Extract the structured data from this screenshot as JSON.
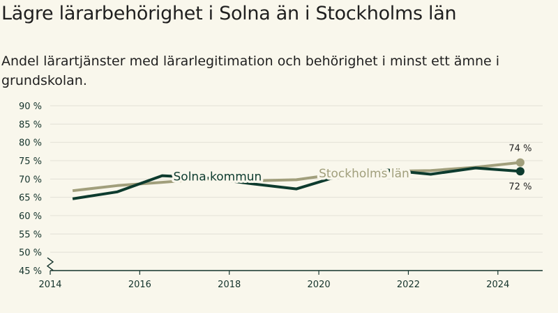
{
  "title": "Lägre lärarbehörighet i Solna än i Stockholms län",
  "subtitle": "Andel lärartjänster med lärarlegitimation och behörighet i minst ett ämne i grundskolan.",
  "chart_data": {
    "type": "line",
    "ylim": [
      45,
      90
    ],
    "y_ticks": [
      {
        "value": 45,
        "label": "45 %"
      },
      {
        "value": 50,
        "label": "50 %"
      },
      {
        "value": 55,
        "label": "55 %"
      },
      {
        "value": 60,
        "label": "60 %"
      },
      {
        "value": 65,
        "label": "65 %"
      },
      {
        "value": 70,
        "label": "70 %"
      },
      {
        "value": 75,
        "label": "75 %"
      },
      {
        "value": 80,
        "label": "80 %"
      },
      {
        "value": 85,
        "label": "85 %"
      },
      {
        "value": 90,
        "label": "90 %"
      }
    ],
    "xlim": [
      2014,
      2025
    ],
    "x_ticks": [
      {
        "value": 2014,
        "label": "2014"
      },
      {
        "value": 2016,
        "label": "2016"
      },
      {
        "value": 2018,
        "label": "2018"
      },
      {
        "value": 2020,
        "label": "2020"
      },
      {
        "value": 2022,
        "label": "2022"
      },
      {
        "value": 2024,
        "label": "2024"
      }
    ],
    "y_axis_break": true,
    "grid": true,
    "series": [
      {
        "name": "Stockholms län",
        "color": "#a19f7c",
        "x": [
          2014.5,
          2015.5,
          2016.5,
          2017.5,
          2018.5,
          2019.5,
          2020.5,
          2021.5,
          2022.5,
          2023.5,
          2024.5
        ],
        "values": [
          66.8,
          68.2,
          69.1,
          70.0,
          69.5,
          69.8,
          71.5,
          72.1,
          72.3,
          73.2,
          74.5
        ],
        "end_label": "74 %"
      },
      {
        "name": "Solna kommun",
        "color": "#0d3b2e",
        "x": [
          2014.5,
          2015.5,
          2016.5,
          2017.5,
          2018.5,
          2019.5,
          2020.5,
          2021.5,
          2022.5,
          2023.5,
          2024.5
        ],
        "values": [
          64.6,
          66.5,
          70.9,
          70.3,
          68.7,
          67.3,
          71.0,
          72.5,
          71.3,
          73.0,
          72.1
        ],
        "end_label": "72 %"
      }
    ]
  }
}
